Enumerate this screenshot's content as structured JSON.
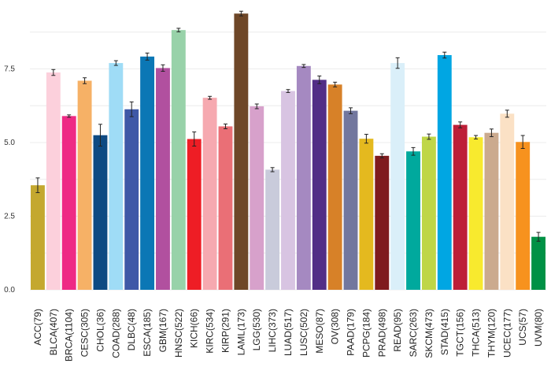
{
  "chart_data": {
    "type": "bar",
    "title": "",
    "xlabel": "",
    "ylabel": "",
    "ylim": [
      0,
      9.6
    ],
    "yticks": [
      0.0,
      2.5,
      5.0,
      7.5
    ],
    "ytick_labels": [
      "0.0",
      "2.5",
      "5.0",
      "7.5"
    ],
    "grid": true,
    "legend": "none",
    "bars": [
      {
        "label": "ACC(79)",
        "value": 3.55,
        "err": 0.25,
        "color": "#c4a82f"
      },
      {
        "label": "BLCA(407)",
        "value": 7.38,
        "err": 0.1,
        "color": "#fcd0dc"
      },
      {
        "label": "BRCA(1104)",
        "value": 5.9,
        "err": 0.04,
        "color": "#ee2a85"
      },
      {
        "label": "CESC(305)",
        "value": 7.1,
        "err": 0.1,
        "color": "#f6b166"
      },
      {
        "label": "CHOL(36)",
        "value": 5.25,
        "err": 0.37,
        "color": "#0e4a83"
      },
      {
        "label": "COAD(288)",
        "value": 7.7,
        "err": 0.08,
        "color": "#9fdcf6"
      },
      {
        "label": "DLBC(48)",
        "value": 6.13,
        "err": 0.25,
        "color": "#3f58a7"
      },
      {
        "label": "ESCA(185)",
        "value": 7.92,
        "err": 0.12,
        "color": "#0b77b5"
      },
      {
        "label": "GBM(167)",
        "value": 7.53,
        "err": 0.11,
        "color": "#b1509f"
      },
      {
        "label": "HNSC(522)",
        "value": 8.82,
        "err": 0.06,
        "color": "#98d2a9"
      },
      {
        "label": "KICH(66)",
        "value": 5.12,
        "err": 0.24,
        "color": "#ee1d25"
      },
      {
        "label": "KIRC(534)",
        "value": 6.52,
        "err": 0.05,
        "color": "#f6a9b0"
      },
      {
        "label": "KIRP(291)",
        "value": 5.55,
        "err": 0.08,
        "color": "#ea6f76"
      },
      {
        "label": "LAML(173)",
        "value": 9.38,
        "err": 0.08,
        "color": "#6e4728"
      },
      {
        "label": "LGG(530)",
        "value": 6.23,
        "err": 0.08,
        "color": "#d7a1cb"
      },
      {
        "label": "LIHC(373)",
        "value": 4.08,
        "err": 0.07,
        "color": "#c9cbdb"
      },
      {
        "label": "LUAD(517)",
        "value": 6.75,
        "err": 0.05,
        "color": "#d8c4e2"
      },
      {
        "label": "LUSC(502)",
        "value": 7.6,
        "err": 0.05,
        "color": "#a589c1"
      },
      {
        "label": "MESO(87)",
        "value": 7.13,
        "err": 0.13,
        "color": "#522e86"
      },
      {
        "label": "OV(308)",
        "value": 6.97,
        "err": 0.08,
        "color": "#d78128"
      },
      {
        "label": "PAAD(179)",
        "value": 6.08,
        "err": 0.1,
        "color": "#72779e"
      },
      {
        "label": "PCPG(184)",
        "value": 5.13,
        "err": 0.15,
        "color": "#e4b91f"
      },
      {
        "label": "PRAD(498)",
        "value": 4.55,
        "err": 0.07,
        "color": "#7f1b1e"
      },
      {
        "label": "READ(95)",
        "value": 7.7,
        "err": 0.18,
        "color": "#daeff9"
      },
      {
        "label": "SARC(263)",
        "value": 4.7,
        "err": 0.13,
        "color": "#00a99d"
      },
      {
        "label": "SKCM(473)",
        "value": 5.2,
        "err": 0.09,
        "color": "#bfd647"
      },
      {
        "label": "STAD(415)",
        "value": 7.97,
        "err": 0.1,
        "color": "#00a6e3"
      },
      {
        "label": "TGCT(156)",
        "value": 5.6,
        "err": 0.1,
        "color": "#bd1f38"
      },
      {
        "label": "THCA(513)",
        "value": 5.18,
        "err": 0.06,
        "color": "#f8ea2e"
      },
      {
        "label": "THYM(120)",
        "value": 5.33,
        "err": 0.13,
        "color": "#cbaa8e"
      },
      {
        "label": "UCEC(177)",
        "value": 5.98,
        "err": 0.12,
        "color": "#fbe1c5"
      },
      {
        "label": "UCS(57)",
        "value": 5.02,
        "err": 0.22,
        "color": "#f7921e"
      },
      {
        "label": "UVM(80)",
        "value": 1.8,
        "err": 0.15,
        "color": "#009145"
      }
    ]
  }
}
